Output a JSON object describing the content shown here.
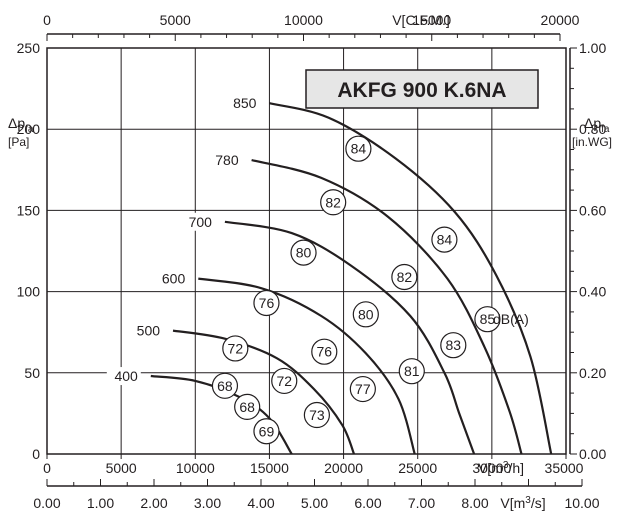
{
  "chart_data": {
    "type": "line",
    "title": "AKFG 900 K.6NA",
    "x_bottom": {
      "label": "V[m³/h]",
      "range": [
        0,
        35000
      ],
      "ticks": [
        "0",
        "5000",
        "10000",
        "15000",
        "20000",
        "25000",
        "30000",
        "35000"
      ]
    },
    "x_top": {
      "label": "V[C.F.M.]",
      "range": [
        0,
        20000
      ],
      "ticks": [
        "0",
        "5000",
        "10000",
        "15000",
        "20000"
      ]
    },
    "x_bottom2": {
      "label": "V[m³/s]",
      "range": [
        0,
        10
      ],
      "ticks": [
        "0.00",
        "1.00",
        "2.00",
        "3.00",
        "4.00",
        "5.00",
        "6.00",
        "7.00",
        "8.00",
        "9.00",
        "10.00"
      ]
    },
    "y_left": {
      "label_main": "Δp",
      "label_sub": "fa",
      "label_unit": "[Pa]",
      "range": [
        0,
        250
      ],
      "ticks": [
        "0",
        "50",
        "100",
        "150",
        "200",
        "250"
      ]
    },
    "y_right": {
      "label_main": "Δp",
      "label_sub": "fa",
      "label_unit": "[in.WG]",
      "range": [
        0,
        1.0
      ],
      "ticks": [
        "0.00",
        "0.20",
        "0.40",
        "0.60",
        "0.80",
        "1.00"
      ]
    },
    "grid": true,
    "dba_label": "dB(A)",
    "series": [
      {
        "name": "400",
        "points": [
          [
            7000,
            48
          ],
          [
            10000,
            45
          ],
          [
            13000,
            35
          ],
          [
            15000,
            22
          ],
          [
            16500,
            0
          ]
        ],
        "markers": [
          {
            "x": 12000,
            "y": 42,
            "text": "68"
          },
          {
            "x": 13500,
            "y": 29,
            "text": "68"
          },
          {
            "x": 14800,
            "y": 14,
            "text": "69"
          }
        ]
      },
      {
        "name": "500",
        "points": [
          [
            8500,
            76
          ],
          [
            12000,
            71
          ],
          [
            15500,
            59
          ],
          [
            18000,
            40
          ],
          [
            19900,
            18
          ],
          [
            20700,
            0
          ]
        ],
        "markers": [
          {
            "x": 12700,
            "y": 65,
            "text": "72"
          },
          {
            "x": 16000,
            "y": 45,
            "text": "72"
          },
          {
            "x": 18200,
            "y": 24,
            "text": "73"
          }
        ]
      },
      {
        "name": "600",
        "points": [
          [
            10200,
            108
          ],
          [
            14500,
            102
          ],
          [
            18500,
            85
          ],
          [
            21500,
            62
          ],
          [
            23700,
            34
          ],
          [
            24800,
            0
          ]
        ],
        "markers": [
          {
            "x": 14800,
            "y": 93,
            "text": "76"
          },
          {
            "x": 18700,
            "y": 63,
            "text": "76"
          },
          {
            "x": 21300,
            "y": 40,
            "text": "77"
          }
        ]
      },
      {
        "name": "700",
        "points": [
          [
            12000,
            143
          ],
          [
            16500,
            136
          ],
          [
            20500,
            116
          ],
          [
            24500,
            85
          ],
          [
            26800,
            50
          ],
          [
            27800,
            25
          ],
          [
            28800,
            0
          ]
        ],
        "markers": [
          {
            "x": 17300,
            "y": 124,
            "text": "80"
          },
          {
            "x": 21500,
            "y": 86,
            "text": "80"
          },
          {
            "x": 24600,
            "y": 51,
            "text": "81"
          }
        ]
      },
      {
        "name": "780",
        "points": [
          [
            13800,
            181
          ],
          [
            18500,
            170
          ],
          [
            23000,
            146
          ],
          [
            27000,
            108
          ],
          [
            29500,
            66
          ],
          [
            31200,
            26
          ],
          [
            32000,
            0
          ]
        ],
        "markers": [
          {
            "x": 19300,
            "y": 155,
            "text": "82"
          },
          {
            "x": 24100,
            "y": 109,
            "text": "82"
          },
          {
            "x": 27400,
            "y": 67,
            "text": "83"
          }
        ]
      },
      {
        "name": "850",
        "points": [
          [
            15000,
            216
          ],
          [
            19000,
            207
          ],
          [
            23500,
            182
          ],
          [
            27500,
            149
          ],
          [
            30300,
            110
          ],
          [
            32600,
            60
          ],
          [
            34000,
            0
          ]
        ],
        "markers": [
          {
            "x": 21000,
            "y": 188,
            "text": "84"
          },
          {
            "x": 26800,
            "y": 132,
            "text": "84"
          },
          {
            "x": 29700,
            "y": 83,
            "text": "85"
          }
        ]
      }
    ]
  }
}
